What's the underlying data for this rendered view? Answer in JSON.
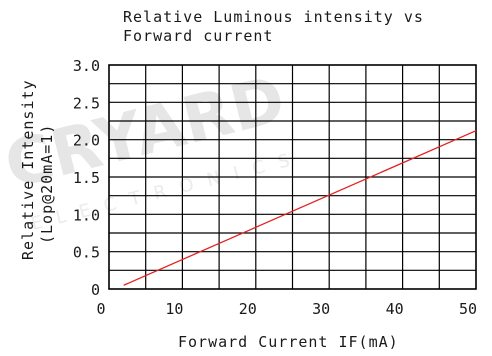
{
  "chart_data": {
    "type": "line",
    "title_lines": [
      "Relative Luminous intensity vs",
      "Forward current"
    ],
    "xlabel": "Forward Current IF(mA)",
    "ylabel_lines": [
      "Relative Intensity",
      "(Lop@20mA=1)"
    ],
    "xlim": [
      0,
      50
    ],
    "ylim": [
      0,
      3.0
    ],
    "x_ticks": [
      "0",
      "10",
      "20",
      "30",
      "40",
      "50"
    ],
    "y_ticks": [
      "0",
      "0.5",
      "1.0",
      "1.5",
      "2.0",
      "2.5",
      "3.0"
    ],
    "grid": true,
    "series": [
      {
        "x": [
          2,
          50
        ],
        "y": [
          0.05,
          2.12
        ]
      }
    ],
    "line_color": "#e32222"
  },
  "watermark": {
    "brand": "CRYARD",
    "sub": "ELECTRONICS"
  }
}
